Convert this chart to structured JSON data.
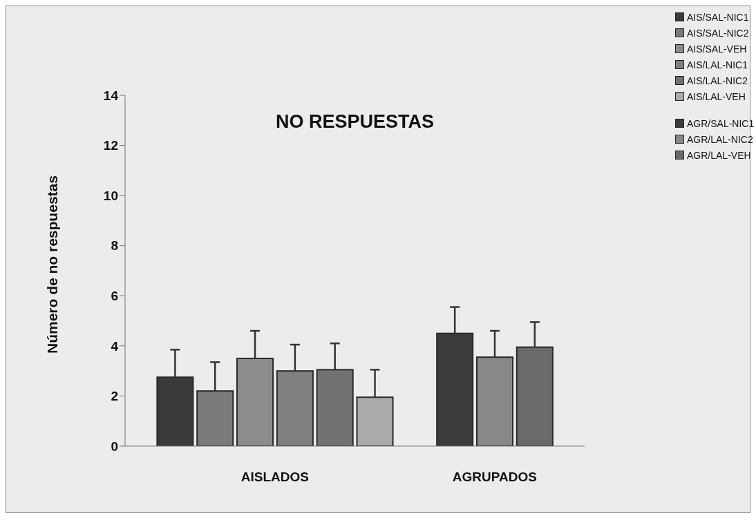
{
  "chart_data": {
    "type": "bar",
    "title": "NO RESPUESTAS",
    "ylabel": "Número de no respuestas",
    "categories": [
      "AISLADOS",
      "AGRUPADOS"
    ],
    "series": [
      {
        "name": "AIS/SAL-NIC1",
        "color": "#3a3a3a",
        "values": [
          2.75,
          null
        ],
        "errors": [
          [
            2.75,
            3.85
          ],
          null
        ]
      },
      {
        "name": "AIS/SAL-NIC2",
        "color": "#7a7a7a",
        "values": [
          2.2,
          null
        ],
        "errors": [
          [
            2.2,
            3.35
          ],
          null
        ]
      },
      {
        "name": "AIS/SAL-VEH",
        "color": "#8c8c8c",
        "values": [
          3.5,
          null
        ],
        "errors": [
          [
            3.5,
            4.6
          ],
          null
        ]
      },
      {
        "name": "AIS/LAL-NIC1",
        "color": "#808080",
        "values": [
          3.0,
          null
        ],
        "errors": [
          [
            3.0,
            4.05
          ],
          null
        ]
      },
      {
        "name": "AIS/LAL-NIC2",
        "color": "#727272",
        "values": [
          3.05,
          null
        ],
        "errors": [
          [
            3.05,
            4.1
          ],
          null
        ]
      },
      {
        "name": "AIS/LAL-VEH",
        "color": "#ababab",
        "values": [
          1.95,
          null
        ],
        "errors": [
          [
            1.95,
            3.05
          ],
          null
        ]
      },
      {
        "name": "AGR/SAL-NIC1",
        "color": "#3c3c3c",
        "values": [
          null,
          4.5
        ],
        "errors": [
          null,
          [
            4.5,
            5.55
          ]
        ]
      },
      {
        "name": "AGR/LAL-NIC2",
        "color": "#888888",
        "values": [
          null,
          3.55
        ],
        "errors": [
          null,
          [
            3.55,
            4.6
          ]
        ]
      },
      {
        "name": "AGR/LAL-VEH",
        "color": "#6a6a6a",
        "values": [
          null,
          3.95
        ],
        "errors": [
          null,
          [
            3.95,
            4.95
          ]
        ]
      }
    ],
    "ylim": [
      0,
      14
    ],
    "yticks": [
      0,
      2,
      4,
      6,
      8,
      10,
      12,
      14
    ],
    "grid": false,
    "legend": "top right"
  }
}
